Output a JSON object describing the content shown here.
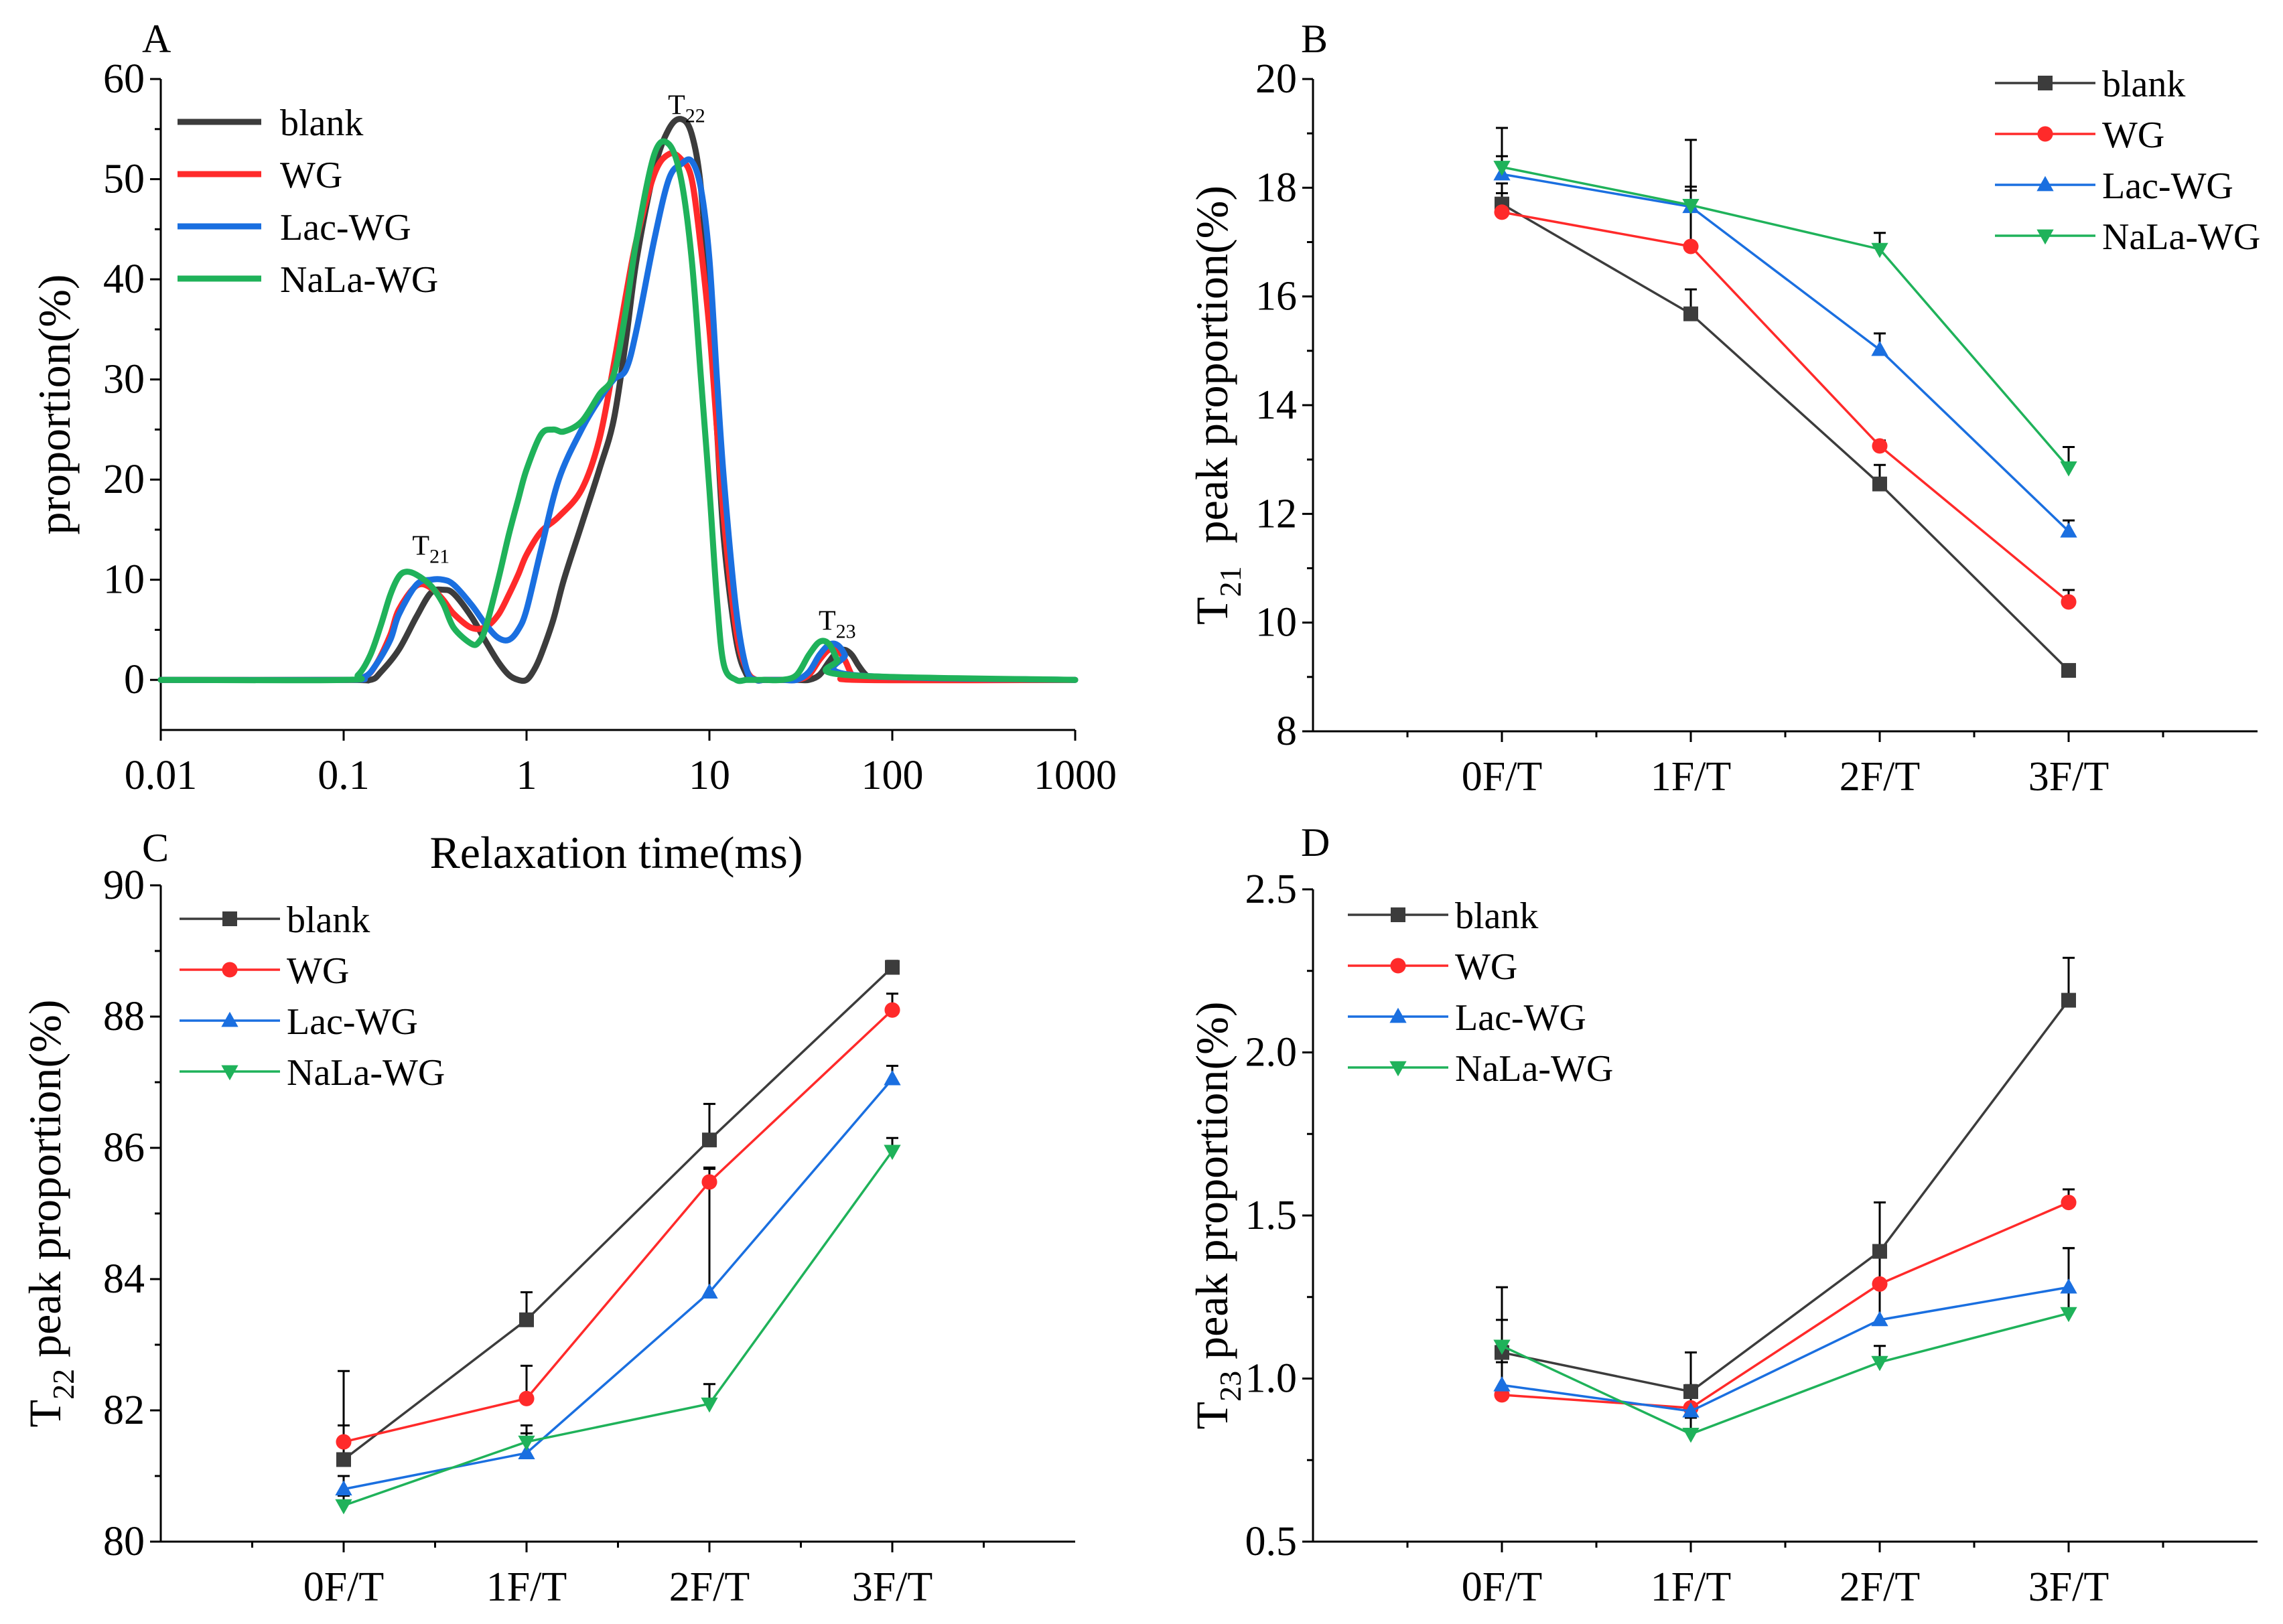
{
  "figure": {
    "colors": {
      "blank": "#3c3c3c",
      "WG": "#ff2a2a",
      "Lac-WG": "#1a6fe0",
      "NaLa-WG": "#1fb25a"
    }
  },
  "chart_data": [
    {
      "panel": "A",
      "type": "line",
      "xscale": "log",
      "xlabel": "Relaxation time(ms)",
      "ylabel": "proportion(%)",
      "xlim": [
        0.01,
        1000
      ],
      "ylim": [
        -5,
        60
      ],
      "x_tick_labels": [
        "0.01",
        "0.1",
        "1",
        "10",
        "100",
        "1000"
      ],
      "y_tick_labels": [
        "0",
        "10",
        "20",
        "30",
        "40",
        "50",
        "60"
      ],
      "legend": [
        "blank",
        "WG",
        "Lac-WG",
        "NaLa-WG"
      ],
      "legend_position": "top-left",
      "annotations": [
        {
          "base": "T",
          "sub": "21",
          "x": 0.3,
          "y": 12.5
        },
        {
          "base": "T",
          "sub": "22",
          "x": 7.5,
          "y": 56.5
        },
        {
          "base": "T",
          "sub": "23",
          "x": 50,
          "y": 5
        }
      ],
      "series": [
        {
          "name": "blank",
          "x": [
            0.01,
            0.1,
            0.14,
            0.16,
            0.2,
            0.25,
            0.3,
            0.35,
            0.4,
            0.5,
            0.6,
            0.7,
            0.8,
            0.9,
            1.0,
            1.1,
            1.2,
            1.4,
            1.6,
            2.0,
            2.5,
            3.0,
            3.5,
            4.0,
            5.0,
            6.0,
            7.0,
            8.0,
            9.0,
            10.0,
            11.0,
            12.0,
            14.0,
            16.0,
            18.0,
            20.0,
            25.0,
            30.0,
            35.0,
            40.0,
            45.0,
            50.0,
            55.0,
            60.0,
            65.0,
            70.0,
            75.0,
            80.0,
            1000.0
          ],
          "y": [
            0,
            0,
            0,
            0.8,
            3.0,
            6.3,
            8.7,
            9.0,
            8.6,
            6.3,
            3.8,
            1.8,
            0.5,
            0,
            0,
            1,
            2.5,
            6,
            10,
            15.5,
            21,
            26,
            34,
            42,
            51,
            55,
            56,
            54.5,
            49,
            37,
            25,
            14,
            4,
            0.5,
            0,
            0,
            0,
            0,
            0,
            0.5,
            1.8,
            2.8,
            3.0,
            2.5,
            1.5,
            0.7,
            0.2,
            0,
            0
          ]
        },
        {
          "name": "WG",
          "x": [
            0.01,
            0.1,
            0.13,
            0.15,
            0.18,
            0.2,
            0.25,
            0.3,
            0.35,
            0.4,
            0.5,
            0.6,
            0.7,
            0.8,
            0.9,
            1.0,
            1.2,
            1.5,
            2.0,
            2.5,
            3.0,
            3.5,
            4.0,
            5.0,
            6.0,
            7.0,
            8.0,
            9.0,
            10.0,
            11.0,
            12.0,
            14.0,
            16.0,
            18.0,
            20.0,
            25.0,
            30.0,
            35.0,
            40.0,
            45.0,
            50.0,
            55.0,
            60.0,
            65.0,
            1000.0
          ],
          "y": [
            0,
            0,
            0.3,
            1.5,
            4.5,
            7.0,
            9.4,
            9.2,
            8.0,
            6.6,
            5.2,
            5.3,
            6.5,
            8.5,
            10.5,
            12.5,
            14.8,
            16.3,
            19.0,
            24.0,
            31.5,
            38.5,
            44.0,
            50.5,
            52.5,
            52.0,
            50.0,
            43.0,
            35.0,
            25.0,
            16.0,
            5.0,
            1.0,
            0,
            0,
            0,
            0,
            0.5,
            2.0,
            3.0,
            3.0,
            2.0,
            0.5,
            0,
            0
          ]
        },
        {
          "name": "Lac-WG",
          "x": [
            0.01,
            0.1,
            0.13,
            0.15,
            0.18,
            0.2,
            0.25,
            0.3,
            0.35,
            0.4,
            0.5,
            0.6,
            0.7,
            0.8,
            0.9,
            1.0,
            1.2,
            1.5,
            2.0,
            2.5,
            3.0,
            3.5,
            4.0,
            5.0,
            6.0,
            7.0,
            8.0,
            9.0,
            10.0,
            11.0,
            12.0,
            14.0,
            16.0,
            18.0,
            20.0,
            25.0,
            30.0,
            35.0,
            40.0,
            45.0,
            50.0,
            55.0,
            60.0,
            1000.0
          ],
          "y": [
            0,
            0,
            0.3,
            1.5,
            4.0,
            6.5,
            9.5,
            10.0,
            10.0,
            9.5,
            7.5,
            5.5,
            4.2,
            4.0,
            5.0,
            7.0,
            13.0,
            20.0,
            25.0,
            28.0,
            30.0,
            31.0,
            35.0,
            44.0,
            50.0,
            51.5,
            51.8,
            49.0,
            42.0,
            30.0,
            20.0,
            7.0,
            1.0,
            0,
            0,
            0,
            0,
            0.8,
            2.5,
            3.5,
            3.5,
            2.5,
            0.5,
            0
          ]
        },
        {
          "name": "NaLa-WG",
          "x": [
            0.01,
            0.1,
            0.12,
            0.14,
            0.16,
            0.18,
            0.2,
            0.22,
            0.25,
            0.3,
            0.35,
            0.4,
            0.5,
            0.55,
            0.6,
            0.7,
            0.8,
            0.9,
            1.0,
            1.2,
            1.4,
            1.6,
            2.0,
            2.5,
            3.0,
            3.5,
            4.0,
            5.0,
            6.0,
            7.0,
            8.0,
            9.0,
            10.0,
            11.0,
            12.0,
            14.0,
            16.0,
            18.0,
            20.0,
            25.0,
            30.0,
            35.0,
            40.0,
            45.0,
            50.0,
            55.0,
            1000.0
          ],
          "y": [
            0,
            0,
            0.5,
            2.5,
            5.5,
            8.5,
            10.3,
            10.8,
            10.5,
            9.4,
            7.6,
            5.2,
            3.6,
            3.8,
            5.3,
            10.0,
            14.5,
            18.0,
            21.0,
            24.5,
            25.0,
            24.8,
            25.8,
            28.5,
            30.5,
            37.0,
            44.0,
            52.5,
            53.5,
            50.0,
            42.0,
            30.0,
            19.0,
            8.0,
            1.5,
            0,
            0,
            0,
            0,
            0,
            0.5,
            2.5,
            3.8,
            3.6,
            2.0,
            0.5,
            0
          ]
        }
      ]
    },
    {
      "panel": "B",
      "type": "line",
      "categories": [
        "0F/T",
        "1F/T",
        "2F/T",
        "3F/T"
      ],
      "ylabel_base": "T",
      "ylabel_sub": "21",
      "ylabel_rest": "  peak proportion(%)",
      "ylim": [
        8,
        20
      ],
      "y_tick_labels": [
        "8",
        "10",
        "12",
        "14",
        "16",
        "18",
        "20"
      ],
      "legend": [
        "blank",
        "WG",
        "Lac-WG",
        "NaLa-WG"
      ],
      "legend_position": "top-right",
      "series": [
        {
          "name": "blank",
          "marker": "square",
          "values": [
            17.7,
            15.68,
            12.55,
            9.12
          ],
          "errors": [
            0.38,
            0.45,
            0.35,
            0.08
          ]
        },
        {
          "name": "WG",
          "marker": "circle",
          "values": [
            17.55,
            16.92,
            13.25,
            10.38
          ],
          "errors": [
            0.35,
            1.1,
            0.1,
            0.22
          ]
        },
        {
          "name": "Lac-WG",
          "marker": "triangle-up",
          "values": [
            18.25,
            17.65,
            15.02,
            11.68
          ],
          "errors": [
            0.85,
            0.3,
            0.3,
            0.2
          ]
        },
        {
          "name": "NaLa-WG",
          "marker": "triangle-down",
          "values": [
            18.38,
            17.68,
            16.87,
            12.85
          ],
          "errors": [
            0.2,
            1.2,
            0.3,
            0.38
          ]
        }
      ]
    },
    {
      "panel": "C",
      "type": "line",
      "categories": [
        "0F/T",
        "1F/T",
        "2F/T",
        "3F/T"
      ],
      "ylabel_base": "T",
      "ylabel_sub": "22",
      "ylabel_rest": " peak proportion(%)",
      "ylim": [
        80,
        90
      ],
      "y_tick_labels": [
        "80",
        "82",
        "84",
        "86",
        "88",
        "90"
      ],
      "legend": [
        "blank",
        "WG",
        "Lac-WG",
        "NaLa-WG"
      ],
      "legend_position": "top-left",
      "series": [
        {
          "name": "blank",
          "marker": "square",
          "values": [
            81.25,
            83.38,
            86.12,
            88.75
          ],
          "errors": [
            1.35,
            0.42,
            0.55,
            0.1
          ]
        },
        {
          "name": "WG",
          "marker": "circle",
          "values": [
            81.52,
            82.18,
            85.48,
            88.1
          ],
          "errors": [
            0.25,
            0.5,
            0.2,
            0.25
          ]
        },
        {
          "name": "Lac-WG",
          "marker": "triangle-up",
          "values": [
            80.8,
            81.35,
            83.8,
            87.05
          ],
          "errors": [
            0.2,
            0.3,
            1.9,
            0.2
          ]
        },
        {
          "name": "NaLa-WG",
          "marker": "triangle-down",
          "values": [
            80.55,
            81.52,
            82.1,
            85.95
          ],
          "errors": [
            0.15,
            0.25,
            0.3,
            0.2
          ]
        }
      ]
    },
    {
      "panel": "D",
      "type": "line",
      "categories": [
        "0F/T",
        "1F/T",
        "2F/T",
        "3F/T"
      ],
      "ylabel_base": "T",
      "ylabel_sub": "23",
      "ylabel_rest": " peak proportion(%)",
      "ylim": [
        0.5,
        2.5
      ],
      "y_tick_labels": [
        "0.5",
        "1.0",
        "1.5",
        "2.0",
        "2.5"
      ],
      "legend": [
        "blank",
        "WG",
        "Lac-WG",
        "NaLa-WG"
      ],
      "legend_position": "top-left",
      "series": [
        {
          "name": "blank",
          "marker": "square",
          "values": [
            1.08,
            0.96,
            1.39,
            2.16
          ],
          "errors": [
            0.2,
            0.12,
            0.15,
            0.13
          ]
        },
        {
          "name": "WG",
          "marker": "circle",
          "values": [
            0.95,
            0.91,
            1.29,
            1.54
          ],
          "errors": [
            0.1,
            0.05,
            0.1,
            0.04
          ]
        },
        {
          "name": "Lac-WG",
          "marker": "triangle-up",
          "values": [
            0.98,
            0.9,
            1.18,
            1.28
          ],
          "errors": [
            0.12,
            0.08,
            0.2,
            0.12
          ]
        },
        {
          "name": "NaLa-WG",
          "marker": "triangle-down",
          "values": [
            1.1,
            0.83,
            1.05,
            1.2
          ],
          "errors": [
            0.08,
            0.05,
            0.05,
            0.2
          ]
        }
      ]
    }
  ]
}
